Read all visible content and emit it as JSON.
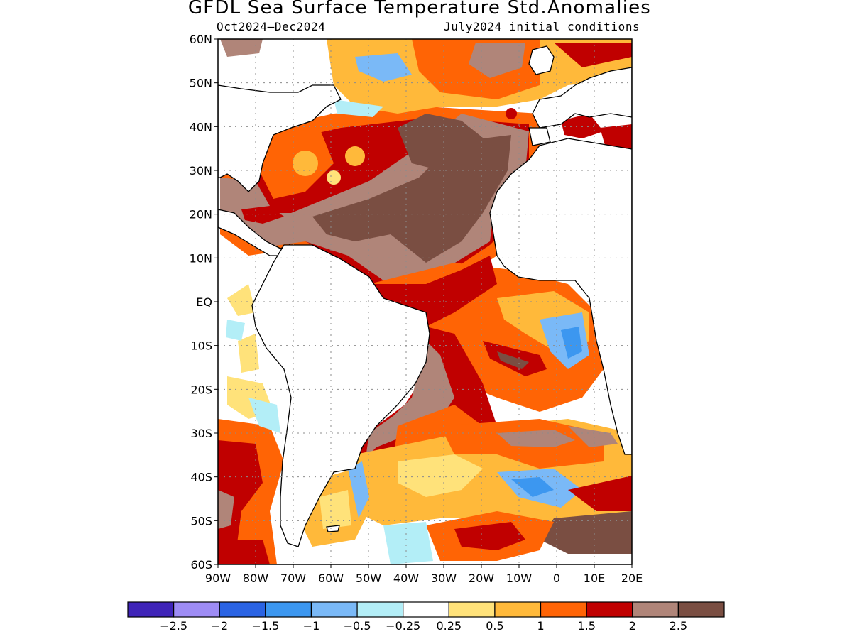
{
  "title": "GFDL Sea Surface Temperature Std.Anomalies",
  "period": "Oct2024–Dec2024",
  "initial_conditions": "July2024 initial conditions",
  "lat_ticks": [
    "60N",
    "50N",
    "40N",
    "30N",
    "20N",
    "10N",
    "EQ",
    "10S",
    "20S",
    "30S",
    "40S",
    "50S",
    "60S"
  ],
  "lon_ticks": [
    "90W",
    "80W",
    "70W",
    "60W",
    "50W",
    "40W",
    "30W",
    "20W",
    "10W",
    "0",
    "10E",
    "20E"
  ],
  "colorbar": {
    "colors": [
      "#3f24b8",
      "#9e8cf5",
      "#2a63e3",
      "#3c97f0",
      "#7ab9f7",
      "#b3eef7",
      "#ffffff",
      "#ffe27a",
      "#ffb93a",
      "#ff6405",
      "#c00000",
      "#b08579",
      "#7a4e42"
    ],
    "labels": [
      "−2.5",
      "−2",
      "−1.5",
      "−1",
      "−0.5",
      "−0.25",
      "0.25",
      "0.5",
      "1",
      "1.5",
      "2",
      "2.5"
    ]
  },
  "legend_colors": {
    "land": "#ffffff",
    "coast": "#000000",
    "grid": "#8c8c8c"
  }
}
